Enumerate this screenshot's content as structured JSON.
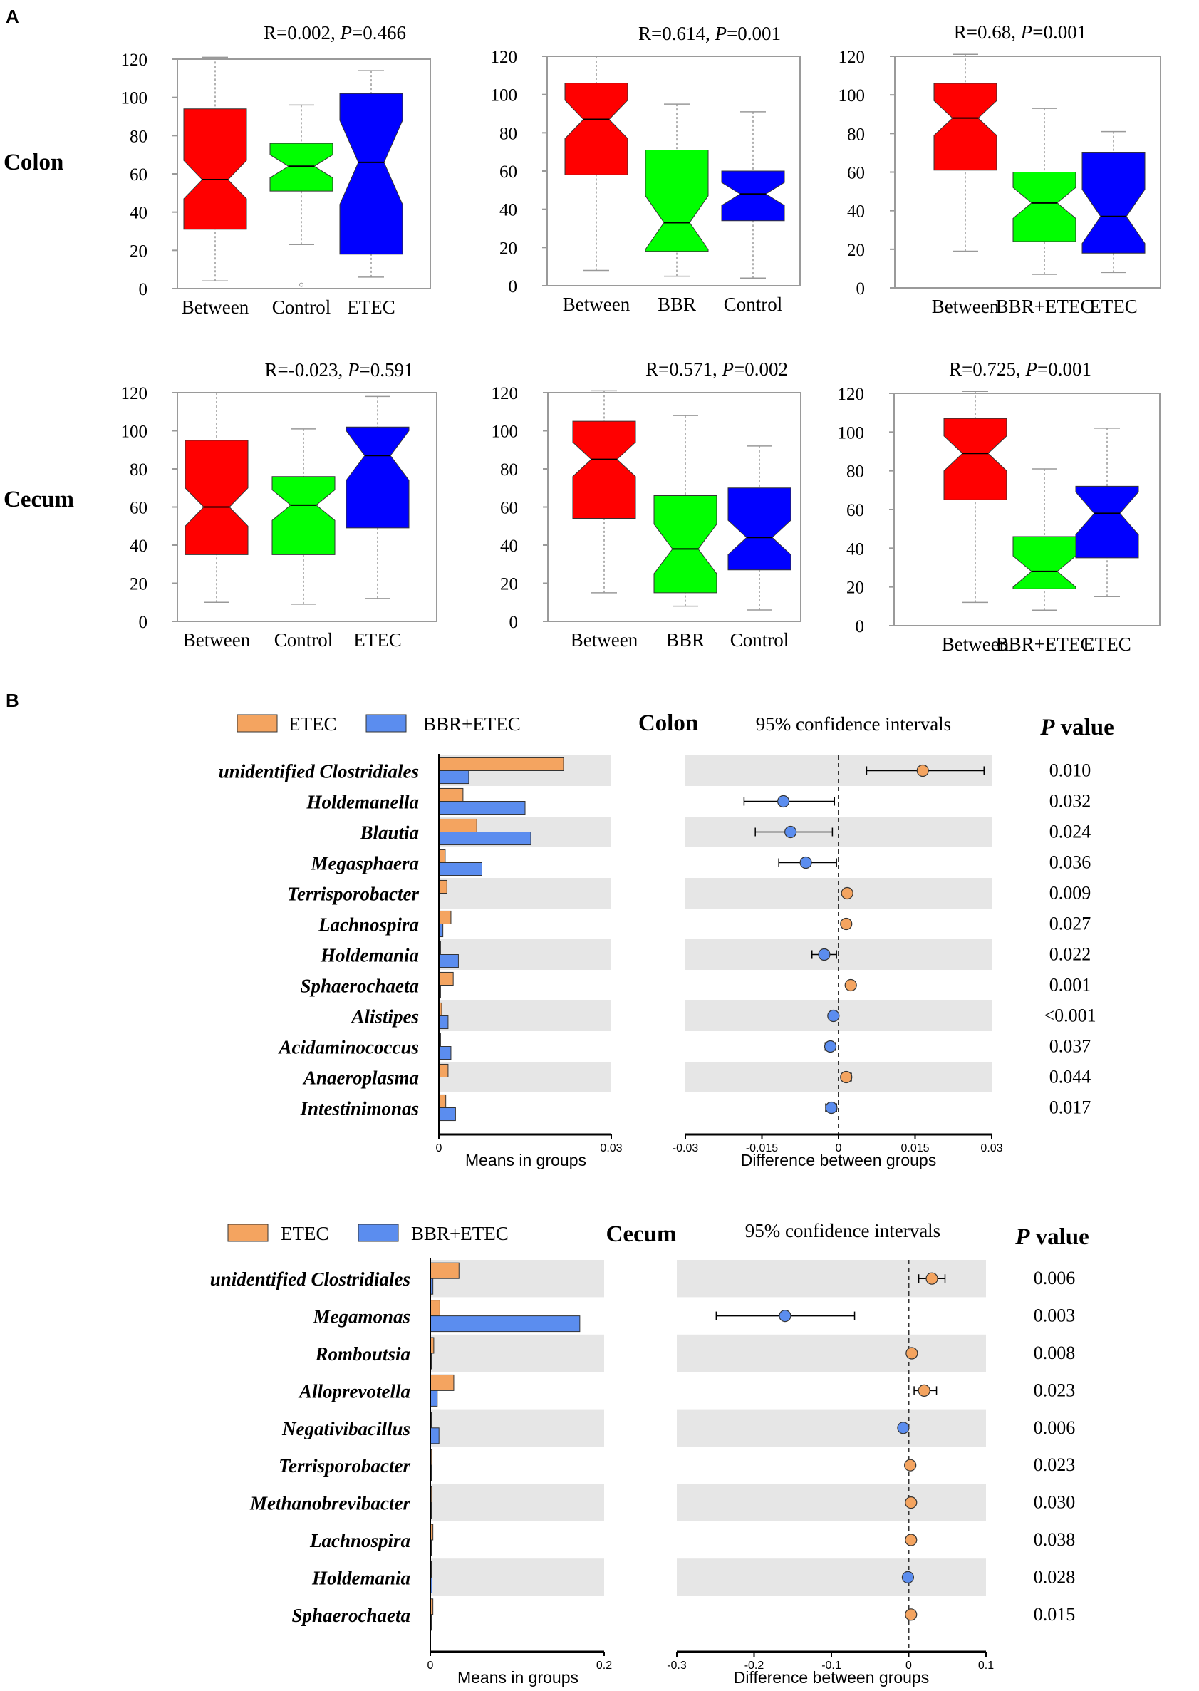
{
  "colors": {
    "red": "#ff0000",
    "green": "#00ff00",
    "blue": "#0000ff",
    "etec": "#f4a460",
    "bbr_etec": "#5b8def",
    "band": "#e6e6e6"
  },
  "panel_a": {
    "label": "A",
    "rows": [
      {
        "label": "Colon"
      },
      {
        "label": "Cecum"
      }
    ]
  },
  "panel_b": {
    "label": "B"
  },
  "chart_data": [
    {
      "type": "box",
      "id": "colon-control-etec",
      "title": {
        "R": "R=0.002, ",
        "P": "P",
        "pval": "=0.466"
      },
      "ylim": [
        0,
        120
      ],
      "yticks": [
        "0",
        "20",
        "40",
        "60",
        "80",
        "100",
        "120"
      ],
      "categories": [
        "Between",
        "Control",
        "ETEC"
      ],
      "boxes": [
        {
          "color": "red",
          "min": 4,
          "q1": 31,
          "median": 57,
          "q3": 94,
          "max": 121,
          "notch": 10
        },
        {
          "color": "green",
          "min": 23,
          "q1": 51,
          "median": 64,
          "q3": 76,
          "max": 96,
          "notch": 6,
          "outlier": 2
        },
        {
          "color": "blue",
          "min": 6,
          "q1": 18,
          "median": 66,
          "q3": 102,
          "max": 114,
          "notch": 22
        }
      ]
    },
    {
      "type": "box",
      "id": "colon-bbr-control",
      "title": {
        "R": "R=0.614, ",
        "P": "P",
        "pval": "=0.001"
      },
      "ylim": [
        0,
        120
      ],
      "yticks": [
        "0",
        "20",
        "40",
        "60",
        "80",
        "100",
        "120"
      ],
      "categories": [
        "Between",
        "BBR",
        "Control"
      ],
      "boxes": [
        {
          "color": "red",
          "min": 8,
          "q1": 58,
          "median": 87,
          "q3": 106,
          "max": 120,
          "notch": 10
        },
        {
          "color": "green",
          "min": 5,
          "q1": 18,
          "median": 33,
          "q3": 71,
          "max": 95,
          "notch": 14
        },
        {
          "color": "blue",
          "min": 4,
          "q1": 34,
          "median": 48,
          "q3": 60,
          "max": 91,
          "notch": 6
        }
      ]
    },
    {
      "type": "box",
      "id": "colon-bbretec-etec",
      "title": {
        "R": "R=0.68, ",
        "P": "P",
        "pval": "=0.001"
      },
      "ylim": [
        0,
        120
      ],
      "yticks": [
        "0",
        "20",
        "40",
        "60",
        "80",
        "100",
        "120"
      ],
      "categories": [
        "Between",
        "BBR+ETEC",
        "ETEC"
      ],
      "boxes": [
        {
          "color": "red",
          "min": 19,
          "q1": 61,
          "median": 88,
          "q3": 106,
          "max": 121,
          "notch": 9
        },
        {
          "color": "green",
          "min": 7,
          "q1": 24,
          "median": 44,
          "q3": 60,
          "max": 93,
          "notch": 8
        },
        {
          "color": "blue",
          "min": 8,
          "q1": 18,
          "median": 37,
          "q3": 70,
          "max": 81,
          "notch": 14
        }
      ]
    },
    {
      "type": "box",
      "id": "cecum-control-etec",
      "title": {
        "R": "R=-0.023, ",
        "P": "P",
        "pval": "=0.591"
      },
      "ylim": [
        0,
        120
      ],
      "yticks": [
        "0",
        "20",
        "40",
        "60",
        "80",
        "100",
        "120"
      ],
      "categories": [
        "Between",
        "Control",
        "ETEC"
      ],
      "boxes": [
        {
          "color": "red",
          "min": 10,
          "q1": 35,
          "median": 60,
          "q3": 95,
          "max": 120,
          "notch": 10
        },
        {
          "color": "green",
          "min": 9,
          "q1": 35,
          "median": 61,
          "q3": 76,
          "max": 101,
          "notch": 8
        },
        {
          "color": "blue",
          "min": 12,
          "q1": 49,
          "median": 87,
          "q3": 102,
          "max": 118,
          "notch": 13
        }
      ]
    },
    {
      "type": "box",
      "id": "cecum-bbr-control",
      "title": {
        "R": "R=0.571, ",
        "P": "P",
        "pval": "=0.002"
      },
      "ylim": [
        0,
        120
      ],
      "yticks": [
        "0",
        "20",
        "40",
        "60",
        "80",
        "100",
        "120"
      ],
      "categories": [
        "Between",
        "BBR",
        "Control"
      ],
      "boxes": [
        {
          "color": "red",
          "min": 15,
          "q1": 54,
          "median": 85,
          "q3": 105,
          "max": 121,
          "notch": 9
        },
        {
          "color": "green",
          "min": 8,
          "q1": 15,
          "median": 38,
          "q3": 66,
          "max": 108,
          "notch": 13
        },
        {
          "color": "blue",
          "min": 6,
          "q1": 27,
          "median": 44,
          "q3": 70,
          "max": 92,
          "notch": 9
        }
      ]
    },
    {
      "type": "box",
      "id": "cecum-bbretec-etec",
      "title": {
        "R": "R=0.725, ",
        "P": "P",
        "pval": "=0.001"
      },
      "ylim": [
        0,
        120
      ],
      "yticks": [
        "0",
        "20",
        "40",
        "60",
        "80",
        "100",
        "120"
      ],
      "categories": [
        "Between",
        "BBR+ETEC",
        "ETEC"
      ],
      "boxes": [
        {
          "color": "red",
          "min": 12,
          "q1": 65,
          "median": 89,
          "q3": 107,
          "max": 121,
          "notch": 9
        },
        {
          "color": "green",
          "min": 8,
          "q1": 19,
          "median": 28,
          "q3": 46,
          "max": 81,
          "notch": 8
        },
        {
          "color": "blue",
          "min": 15,
          "q1": 35,
          "median": 58,
          "q3": 72,
          "max": 102,
          "notch": 11
        }
      ]
    },
    {
      "type": "extended-error-bar",
      "id": "colon-eeb",
      "tissue": "Colon",
      "legend": [
        {
          "name": "ETEC",
          "color": "etec"
        },
        {
          "name": "BBR+ETEC",
          "color": "bbr_etec"
        }
      ],
      "ci_title": "95% confidence intervals",
      "pvalue_header": {
        "P": "P",
        "rest": " value"
      },
      "bar_axis": {
        "label": "Means in groups",
        "xlim": [
          0,
          0.03
        ],
        "ticks": [
          "0",
          "0.03"
        ]
      },
      "diff_axis": {
        "label": "Difference between groups",
        "xlim": [
          -0.03,
          0.03
        ],
        "ticks": [
          "-0.03",
          "-0.015",
          "0",
          "0.015",
          "0.03"
        ]
      },
      "taxa": [
        {
          "name": "unidentified Clostridiales",
          "etec": 0.0217,
          "bbr": 0.0052,
          "diff": 0.0165,
          "lo": 0.0055,
          "hi": 0.0285,
          "favor": "etec",
          "p": "0.010"
        },
        {
          "name": "Holdemanella",
          "etec": 0.0042,
          "bbr": 0.015,
          "diff": -0.0108,
          "lo": -0.0185,
          "hi": -0.0008,
          "favor": "bbr",
          "p": "0.032"
        },
        {
          "name": "Blautia",
          "etec": 0.0066,
          "bbr": 0.016,
          "diff": -0.0094,
          "lo": -0.0163,
          "hi": -0.0012,
          "favor": "bbr",
          "p": "0.024"
        },
        {
          "name": "Megasphaera",
          "etec": 0.0011,
          "bbr": 0.0075,
          "diff": -0.0064,
          "lo": -0.0117,
          "hi": -0.0004,
          "favor": "bbr",
          "p": "0.036"
        },
        {
          "name": "Terrisporobacter",
          "etec": 0.0014,
          "bbr": 0.0001,
          "diff": 0.0017,
          "lo": 0.0011,
          "hi": 0.0023,
          "favor": "etec",
          "p": "0.009"
        },
        {
          "name": "Lachnospira",
          "etec": 0.0021,
          "bbr": 0.0007,
          "diff": 0.0015,
          "lo": 0.0009,
          "hi": 0.0021,
          "favor": "etec",
          "p": "0.027"
        },
        {
          "name": "Holdemania",
          "etec": 0.0003,
          "bbr": 0.0034,
          "diff": -0.0028,
          "lo": -0.0052,
          "hi": -0.0004,
          "favor": "bbr",
          "p": "0.022"
        },
        {
          "name": "Sphaerochaeta",
          "etec": 0.0025,
          "bbr": 0.0003,
          "diff": 0.0024,
          "lo": 0.0017,
          "hi": 0.0031,
          "favor": "etec",
          "p": "0.001"
        },
        {
          "name": "Alistipes",
          "etec": 0.0005,
          "bbr": 0.0016,
          "diff": -0.001,
          "lo": -0.0014,
          "hi": -0.0006,
          "favor": "bbr",
          "p": "<0.001"
        },
        {
          "name": "Acidaminococcus",
          "etec": 0.0003,
          "bbr": 0.0021,
          "diff": -0.0016,
          "lo": -0.0026,
          "hi": -0.0006,
          "favor": "bbr",
          "p": "0.037"
        },
        {
          "name": "Anaeroplasma",
          "etec": 0.0016,
          "bbr": 0.0001,
          "diff": 0.0015,
          "lo": 0.0007,
          "hi": 0.0025,
          "favor": "etec",
          "p": "0.044"
        },
        {
          "name": "Intestinimonas",
          "etec": 0.0012,
          "bbr": 0.0029,
          "diff": -0.0014,
          "lo": -0.0025,
          "hi": -0.0004,
          "favor": "bbr",
          "p": "0.017"
        }
      ]
    },
    {
      "type": "extended-error-bar",
      "id": "cecum-eeb",
      "tissue": "Cecum",
      "legend": [
        {
          "name": "ETEC",
          "color": "etec"
        },
        {
          "name": "BBR+ETEC",
          "color": "bbr_etec"
        }
      ],
      "ci_title": "95% confidence intervals",
      "pvalue_header": {
        "P": "P",
        "rest": " value"
      },
      "bar_axis": {
        "label": "Means in groups",
        "xlim": [
          0,
          0.2
        ],
        "ticks": [
          "0",
          "0.2"
        ]
      },
      "diff_axis": {
        "label": "Difference between groups",
        "xlim": [
          -0.3,
          0.1
        ],
        "ticks": [
          "-0.3",
          "-0.2",
          "-0.1",
          "0",
          "0.1"
        ]
      },
      "taxa": [
        {
          "name": "unidentified Clostridiales",
          "etec": 0.033,
          "bbr": 0.003,
          "diff": 0.03,
          "lo": 0.013,
          "hi": 0.047,
          "favor": "etec",
          "p": "0.006"
        },
        {
          "name": "Megamonas",
          "etec": 0.011,
          "bbr": 0.172,
          "diff": -0.16,
          "lo": -0.249,
          "hi": -0.07,
          "favor": "bbr",
          "p": "0.003"
        },
        {
          "name": "Romboutsia",
          "etec": 0.004,
          "bbr": 0.0005,
          "diff": 0.004,
          "lo": -0.001,
          "hi": 0.009,
          "favor": "etec",
          "p": "0.008"
        },
        {
          "name": "Alloprevotella",
          "etec": 0.027,
          "bbr": 0.008,
          "diff": 0.02,
          "lo": 0.007,
          "hi": 0.036,
          "favor": "etec",
          "p": "0.023"
        },
        {
          "name": "Negativibacillus",
          "etec": 0.0005,
          "bbr": 0.01,
          "diff": -0.007,
          "lo": -0.011,
          "hi": -0.003,
          "favor": "bbr",
          "p": "0.006"
        },
        {
          "name": "Terrisporobacter",
          "etec": 0.0015,
          "bbr": 0.0002,
          "diff": 0.002,
          "lo": -0.001,
          "hi": 0.005,
          "favor": "etec",
          "p": "0.023"
        },
        {
          "name": "Methanobrevibacter",
          "etec": 0.0015,
          "bbr": 0.0002,
          "diff": 0.003,
          "lo": -0.001,
          "hi": 0.007,
          "favor": "etec",
          "p": "0.030"
        },
        {
          "name": "Lachnospira",
          "etec": 0.003,
          "bbr": 0.0005,
          "diff": 0.003,
          "lo": -0.001,
          "hi": 0.007,
          "favor": "etec",
          "p": "0.038"
        },
        {
          "name": "Holdemania",
          "etec": 0.0005,
          "bbr": 0.002,
          "diff": -0.001,
          "lo": -0.004,
          "hi": 0.002,
          "favor": "bbr",
          "p": "0.028"
        },
        {
          "name": "Sphaerochaeta",
          "etec": 0.003,
          "bbr": 0.0002,
          "diff": 0.003,
          "lo": -0.001,
          "hi": 0.007,
          "favor": "etec",
          "p": "0.015"
        }
      ]
    }
  ]
}
